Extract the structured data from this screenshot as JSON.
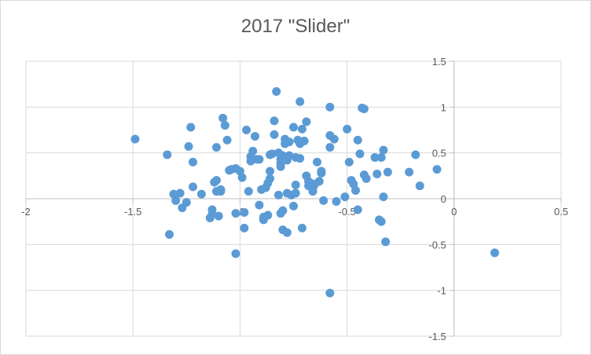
{
  "chart_data": {
    "type": "scatter",
    "title": "2017 \"Slider\"",
    "xlabel": "",
    "ylabel": "",
    "xlim": [
      -2,
      0.5
    ],
    "ylim": [
      -1.5,
      1.5
    ],
    "x_ticks": [
      "-2",
      "-1.5",
      "-1",
      "-0.5",
      "0",
      "0.5"
    ],
    "y_ticks": [
      "1.5",
      "1",
      "0.5",
      "0",
      "-0.5",
      "-1",
      "-1.5"
    ],
    "grid": true,
    "legend": "none",
    "marker_color": "#5b9bd5",
    "series": [
      {
        "points": [
          [
            -1.49,
            0.65
          ],
          [
            -1.34,
            0.48
          ],
          [
            -1.33,
            -0.39
          ],
          [
            -1.31,
            0.05
          ],
          [
            -1.3,
            -0.02
          ],
          [
            -1.28,
            0.06
          ],
          [
            -1.27,
            -0.1
          ],
          [
            -1.25,
            -0.04
          ],
          [
            -1.24,
            0.57
          ],
          [
            -1.23,
            0.78
          ],
          [
            -1.22,
            0.4
          ],
          [
            -1.22,
            0.13
          ],
          [
            -1.18,
            0.05
          ],
          [
            -1.14,
            -0.21
          ],
          [
            -1.13,
            -0.17
          ],
          [
            -1.13,
            -0.12
          ],
          [
            -1.12,
            0.18
          ],
          [
            -1.11,
            0.2
          ],
          [
            -1.11,
            0.56
          ],
          [
            -1.11,
            0.08
          ],
          [
            -1.1,
            -0.19
          ],
          [
            -1.09,
            0.08
          ],
          [
            -1.09,
            0.1
          ],
          [
            -1.08,
            0.88
          ],
          [
            -1.07,
            0.8
          ],
          [
            -1.06,
            0.64
          ],
          [
            -1.05,
            0.31
          ],
          [
            -1.04,
            0.32
          ],
          [
            -1.02,
            0.33
          ],
          [
            -1.02,
            -0.16
          ],
          [
            -1.02,
            -0.6
          ],
          [
            -1.0,
            0.3
          ],
          [
            -0.99,
            0.23
          ],
          [
            -0.98,
            -0.32
          ],
          [
            -0.98,
            -0.15
          ],
          [
            -0.97,
            0.75
          ],
          [
            -0.96,
            0.08
          ],
          [
            -0.95,
            0.46
          ],
          [
            -0.95,
            0.41
          ],
          [
            -0.94,
            0.52
          ],
          [
            -0.93,
            0.68
          ],
          [
            -0.92,
            0.43
          ],
          [
            -0.91,
            -0.07
          ],
          [
            -0.91,
            0.43
          ],
          [
            -0.9,
            0.1
          ],
          [
            -0.89,
            -0.2
          ],
          [
            -0.89,
            -0.23
          ],
          [
            -0.88,
            0.12
          ],
          [
            -0.87,
            0.17
          ],
          [
            -0.87,
            -0.18
          ],
          [
            -0.86,
            0.22
          ],
          [
            -0.86,
            0.3
          ],
          [
            -0.86,
            0.48
          ],
          [
            -0.85,
            0.49
          ],
          [
            -0.84,
            0.85
          ],
          [
            -0.84,
            0.7
          ],
          [
            -0.83,
            1.17
          ],
          [
            -0.82,
            0.5
          ],
          [
            -0.82,
            0.04
          ],
          [
            -0.81,
            0.39
          ],
          [
            -0.81,
            0.35
          ],
          [
            -0.81,
            0.43
          ],
          [
            -0.81,
            -0.16
          ],
          [
            -0.8,
            -0.13
          ],
          [
            -0.8,
            -0.34
          ],
          [
            -0.8,
            0.47
          ],
          [
            -0.79,
            0.65
          ],
          [
            -0.79,
            0.6
          ],
          [
            -0.78,
            0.42
          ],
          [
            -0.78,
            -0.37
          ],
          [
            -0.78,
            0.06
          ],
          [
            -0.77,
            0.62
          ],
          [
            -0.77,
            0.47
          ],
          [
            -0.76,
            0.04
          ],
          [
            -0.75,
            0.78
          ],
          [
            -0.75,
            -0.08
          ],
          [
            -0.74,
            0.06
          ],
          [
            -0.74,
            0.15
          ],
          [
            -0.74,
            0.45
          ],
          [
            -0.73,
            0.64
          ],
          [
            -0.72,
            0.6
          ],
          [
            -0.72,
            1.06
          ],
          [
            -0.72,
            0.44
          ],
          [
            -0.71,
            0.76
          ],
          [
            -0.71,
            -0.32
          ],
          [
            -0.7,
            0.63
          ],
          [
            -0.69,
            0.84
          ],
          [
            -0.69,
            0.25
          ],
          [
            -0.68,
            0.19
          ],
          [
            -0.68,
            0.14
          ],
          [
            -0.67,
            0.17
          ],
          [
            -0.66,
            0.08
          ],
          [
            -0.66,
            0.11
          ],
          [
            -0.65,
            0.16
          ],
          [
            -0.64,
            0.4
          ],
          [
            -0.63,
            0.19
          ],
          [
            -0.62,
            0.28
          ],
          [
            -0.62,
            0.3
          ],
          [
            -0.61,
            -0.02
          ],
          [
            -0.58,
            1.0
          ],
          [
            -0.58,
            -1.03
          ],
          [
            -0.58,
            0.69
          ],
          [
            -0.58,
            0.56
          ],
          [
            -0.56,
            0.65
          ],
          [
            -0.55,
            -0.03
          ],
          [
            -0.51,
            0.02
          ],
          [
            -0.5,
            0.76
          ],
          [
            -0.49,
            0.4
          ],
          [
            -0.48,
            0.2
          ],
          [
            -0.47,
            0.16
          ],
          [
            -0.46,
            0.09
          ],
          [
            -0.45,
            0.64
          ],
          [
            -0.45,
            -0.12
          ],
          [
            -0.44,
            0.49
          ],
          [
            -0.43,
            0.99
          ],
          [
            -0.42,
            0.98
          ],
          [
            -0.42,
            0.26
          ],
          [
            -0.41,
            0.22
          ],
          [
            -0.37,
            0.45
          ],
          [
            -0.36,
            0.27
          ],
          [
            -0.35,
            -0.23
          ],
          [
            -0.34,
            -0.25
          ],
          [
            -0.34,
            0.45
          ],
          [
            -0.33,
            0.53
          ],
          [
            -0.33,
            0.02
          ],
          [
            -0.32,
            -0.47
          ],
          [
            -0.31,
            0.29
          ],
          [
            -0.21,
            0.29
          ],
          [
            -0.18,
            0.48
          ],
          [
            -0.16,
            0.14
          ],
          [
            -0.08,
            0.32
          ],
          [
            0.19,
            -0.59
          ]
        ]
      }
    ]
  }
}
